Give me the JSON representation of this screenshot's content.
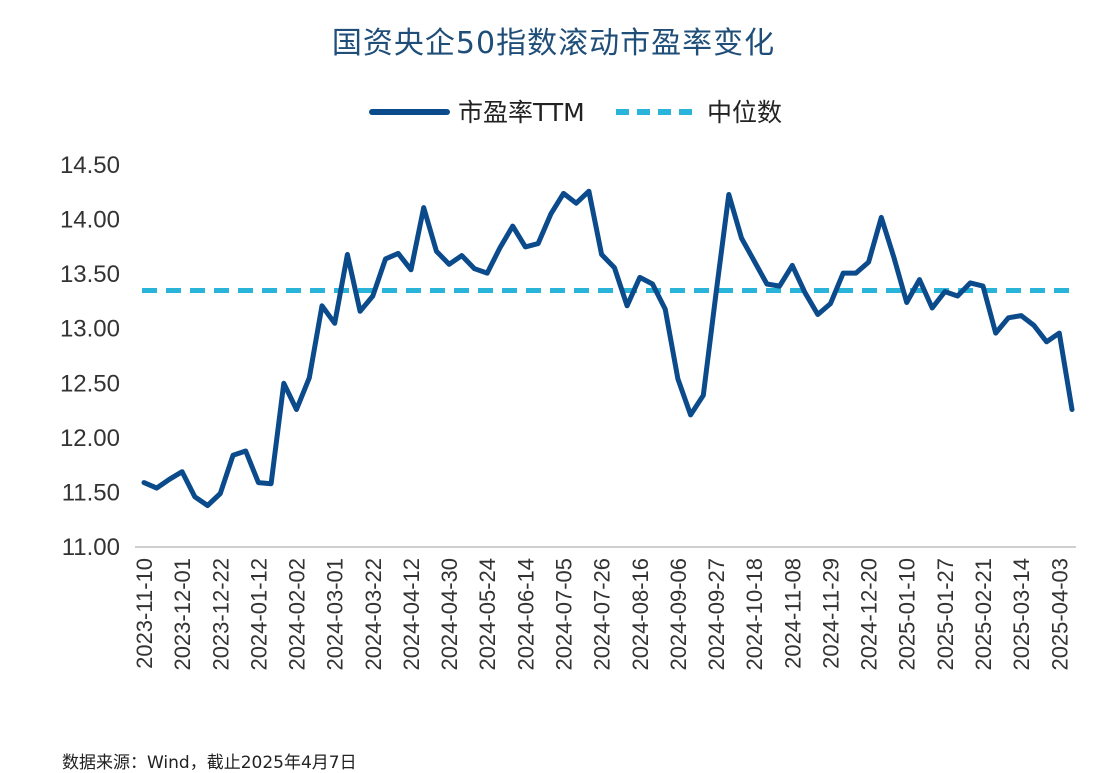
{
  "chart_data": {
    "type": "line",
    "title": "国资央企50指数滚动市盈率变化",
    "xlabel": "",
    "ylabel": "",
    "ylim": [
      11.0,
      14.5
    ],
    "yticks": [
      "14.50",
      "14.00",
      "13.50",
      "13.00",
      "12.50",
      "12.00",
      "11.50",
      "11.00"
    ],
    "ytick_values": [
      14.5,
      14.0,
      13.5,
      13.0,
      12.5,
      12.0,
      11.5,
      11.0
    ],
    "xtick_labels": [
      "2023-11-10",
      "2023-12-01",
      "2023-12-22",
      "2024-01-12",
      "2024-02-02",
      "2024-03-01",
      "2024-03-22",
      "2024-04-12",
      "2024-04-30",
      "2024-05-24",
      "2024-06-14",
      "2024-07-05",
      "2024-07-26",
      "2024-08-16",
      "2024-09-06",
      "2024-09-27",
      "2024-10-18",
      "2024-11-08",
      "2024-11-29",
      "2024-12-20",
      "2025-01-10",
      "2025-01-27",
      "2025-02-21",
      "2025-03-14",
      "2025-04-03"
    ],
    "grid": false,
    "legend_position": "top-center",
    "series": [
      {
        "name": "市盈率TTM",
        "style": "solid",
        "color": "#0b4a8b",
        "values": [
          11.59,
          11.54,
          11.62,
          11.69,
          11.46,
          11.38,
          11.49,
          11.84,
          11.88,
          11.59,
          11.58,
          12.5,
          12.26,
          12.55,
          13.21,
          13.05,
          13.68,
          13.16,
          13.3,
          13.64,
          13.69,
          13.54,
          14.11,
          13.71,
          13.59,
          13.67,
          13.55,
          13.51,
          13.74,
          13.94,
          13.75,
          13.78,
          14.05,
          14.24,
          14.15,
          14.26,
          13.68,
          13.56,
          13.21,
          13.47,
          13.41,
          13.18,
          12.54,
          12.21,
          12.39,
          13.33,
          14.23,
          13.83,
          13.62,
          13.41,
          13.39,
          13.58,
          13.33,
          13.13,
          13.23,
          13.51,
          13.51,
          13.61,
          14.02,
          13.65,
          13.24,
          13.45,
          13.19,
          13.34,
          13.3,
          13.42,
          13.39,
          12.96,
          13.1,
          13.12,
          13.03,
          12.88,
          12.96,
          12.26
        ]
      },
      {
        "name": "中位数",
        "style": "dashed",
        "color": "#2ab4d9",
        "constant": 13.35
      }
    ]
  },
  "source_note": "数据来源：Wind，截止2025年4月7日"
}
